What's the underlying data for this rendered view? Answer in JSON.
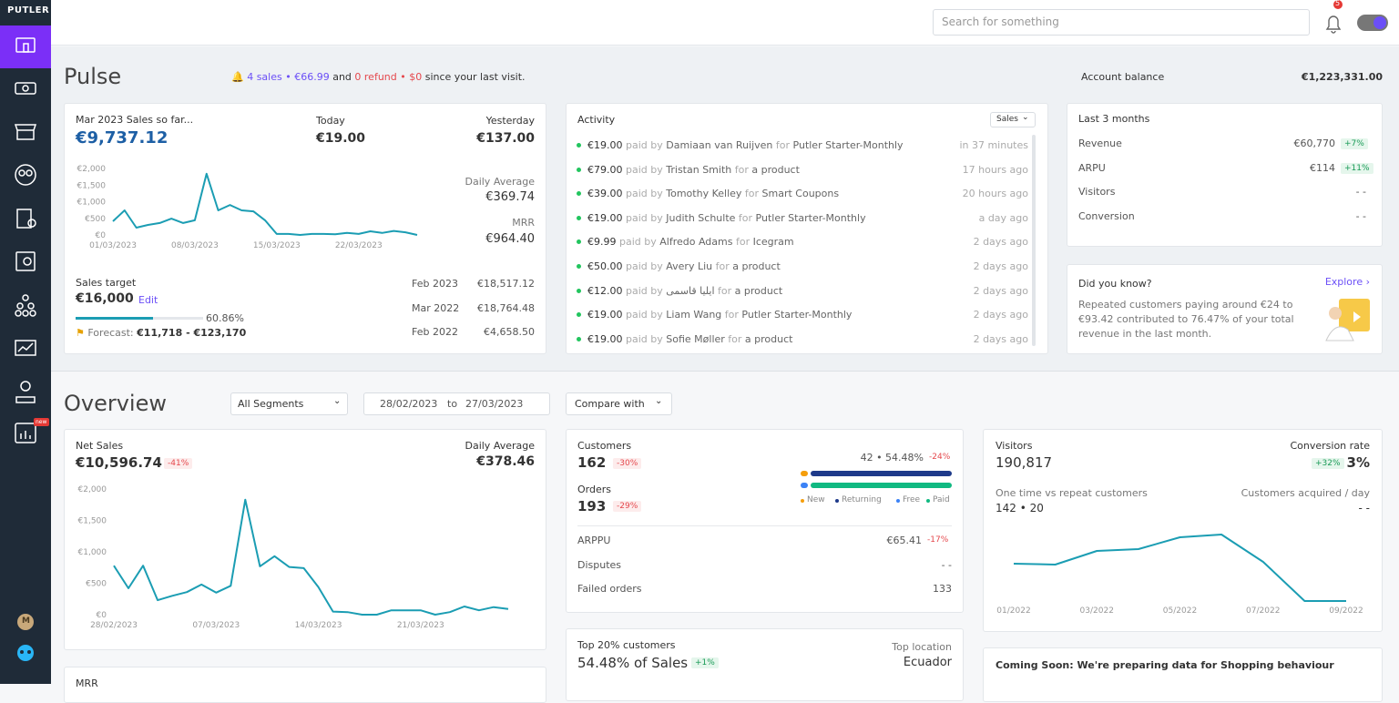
{
  "sidebar": {
    "brand": "PUTLER",
    "avatar": "M",
    "new_badge": "new"
  },
  "header": {
    "search_placeholder": "Search for something",
    "notifications": "5"
  },
  "pulse": {
    "title": "Pulse",
    "last_visit": {
      "sales": "4 sales • €66.99",
      "and": "and",
      "refunds": "0 refund • $0",
      "since": "since your last visit."
    },
    "account_balance": {
      "label": "Account balance",
      "value": "€1,223,331.00"
    },
    "sales_card": {
      "period": "Mar 2023 Sales so far...",
      "total": "€9,737.12",
      "today_label": "Today",
      "today": "€19.00",
      "yesterday_label": "Yesterday",
      "yesterday": "€137.00",
      "daily_average_label": "Daily Average",
      "daily_average": "€369.74",
      "mrr_label": "MRR",
      "mrr": "€964.40",
      "target_label": "Sales target",
      "target": "€16,000",
      "edit": "Edit",
      "progress": {
        "value": 60.86,
        "label": "60.86%"
      },
      "forecast_label": "Forecast:",
      "forecast": "€11,718 - €123,170",
      "comparisons": [
        {
          "period": "Feb 2023",
          "value": "€18,517.12"
        },
        {
          "period": "Mar 2022",
          "value": "€18,764.48"
        },
        {
          "period": "Feb 2022",
          "value": "€4,658.50"
        }
      ]
    },
    "activity": {
      "title": "Activity",
      "filter": "Sales",
      "paid_by": "paid by",
      "for": "for",
      "rows": [
        {
          "amount": "€19.00",
          "name": "Damiaan van Ruijven",
          "product": "Putler Starter-Monthly",
          "time": "in 37 minutes"
        },
        {
          "amount": "€79.00",
          "name": "Tristan Smith",
          "product": "a product",
          "time": "17 hours ago"
        },
        {
          "amount": "€39.00",
          "name": "Tomothy Kelley",
          "product": "Smart Coupons",
          "time": "20 hours ago"
        },
        {
          "amount": "€19.00",
          "name": "Judith Schulte",
          "product": "Putler Starter-Monthly",
          "time": "a day ago"
        },
        {
          "amount": "€9.99",
          "name": "Alfredo Adams",
          "product": "Icegram",
          "time": "2 days ago"
        },
        {
          "amount": "€50.00",
          "name": "Avery Liu",
          "product": "a product",
          "time": "2 days ago"
        },
        {
          "amount": "€12.00",
          "name": "ایلیا قاسمی",
          "product": "a product",
          "time": "2 days ago"
        },
        {
          "amount": "€19.00",
          "name": "Liam Wang",
          "product": "Putler Starter-Monthly",
          "time": "2 days ago"
        },
        {
          "amount": "€19.00",
          "name": "Sofie Møller",
          "product": "a product",
          "time": "2 days ago"
        }
      ]
    },
    "last_3_months": {
      "title": "Last 3 months",
      "rows": [
        {
          "label": "Revenue",
          "value": "€60,770",
          "change": "+7%"
        },
        {
          "label": "ARPU",
          "value": "€114",
          "change": "+11%"
        },
        {
          "label": "Visitors",
          "value": "- -"
        },
        {
          "label": "Conversion",
          "value": "- -"
        }
      ]
    },
    "did_you_know": {
      "title": "Did you know?",
      "link": "Explore ›",
      "text": "Repeated customers paying around €24 to €93.42 contributed to 76.47% of your total revenue in the last month."
    }
  },
  "overview": {
    "title": "Overview",
    "segment": "All Segments",
    "date_from": "28/02/2023",
    "to": "to",
    "date_to": "27/03/2023",
    "compare": "Compare with",
    "net_sales": {
      "label": "Net Sales",
      "value": "€10,596.74",
      "change": "-41%",
      "daily_average_label": "Daily Average",
      "daily_average": "€378.46"
    },
    "customers": {
      "label": "Customers",
      "value": "162",
      "change": "-30%",
      "orders_label": "Orders",
      "orders": "193",
      "orders_change": "-29%",
      "repeat": "42 • 54.48%",
      "repeat_change": "-24%",
      "legend": [
        "New",
        "Returning",
        "Free",
        "Paid"
      ],
      "rows": [
        {
          "label": "ARPPU",
          "value": "€65.41",
          "change": "-17%"
        },
        {
          "label": "Disputes",
          "value": "- -"
        },
        {
          "label": "Failed orders",
          "value": "133"
        }
      ]
    },
    "visitors": {
      "label": "Visitors",
      "value": "190,817",
      "conversion_label": "Conversion rate",
      "conversion_change": "+32%",
      "conversion": "3%",
      "one_time_label": "One time vs repeat customers",
      "one_time": "142 • 20",
      "acquired_label": "Customers acquired / day",
      "acquired": "- -"
    },
    "top_customers": {
      "label": "Top 20% customers",
      "value": "54.48% of Sales",
      "change": "+1%",
      "location_label": "Top location",
      "location": "Ecuador"
    },
    "coming_soon": "Coming Soon: We're preparing data for Shopping behaviour",
    "mrr_label": "MRR"
  },
  "chart_data": [
    {
      "type": "line",
      "color": "#1b9db3",
      "categories": [
        "01/03/2023",
        null,
        null,
        null,
        null,
        null,
        null,
        "08/03/2023",
        null,
        null,
        null,
        null,
        null,
        null,
        "15/03/2023",
        null,
        null,
        null,
        null,
        null,
        null,
        "22/03/2023",
        null,
        null,
        null,
        null,
        null
      ],
      "values": [
        410,
        740,
        220,
        300,
        360,
        490,
        360,
        440,
        1840,
        740,
        900,
        740,
        710,
        440,
        30,
        30,
        0,
        30,
        30,
        20,
        60,
        30,
        110,
        60,
        120,
        80,
        0
      ],
      "ylim": [
        0,
        2000
      ],
      "yticks": [
        {
          "value": 0,
          "label": "€0"
        },
        {
          "value": 500,
          "label": "€500"
        },
        {
          "value": 1000,
          "label": "€1,000"
        },
        {
          "value": 1500,
          "label": "€1,500"
        },
        {
          "value": 2000,
          "label": "€2,000"
        }
      ]
    },
    {
      "type": "line",
      "color": "#1b9db3",
      "categories": [
        "28/02/2023",
        null,
        null,
        null,
        null,
        null,
        null,
        "07/03/2023",
        null,
        null,
        null,
        null,
        null,
        null,
        "14/03/2023",
        null,
        null,
        null,
        null,
        null,
        null,
        "21/03/2023",
        null,
        null,
        null,
        null,
        null,
        null
      ],
      "values": [
        780,
        420,
        780,
        230,
        300,
        360,
        480,
        350,
        460,
        1830,
        770,
        930,
        760,
        740,
        440,
        50,
        40,
        0,
        0,
        70,
        70,
        70,
        0,
        40,
        130,
        70,
        120,
        90
      ],
      "ylim": [
        0,
        2000
      ],
      "yticks": [
        {
          "value": 0,
          "label": "€0"
        },
        {
          "value": 500,
          "label": "€500"
        },
        {
          "value": 1000,
          "label": "€1,000"
        },
        {
          "value": 1500,
          "label": "€1,500"
        },
        {
          "value": 2000,
          "label": "€2,000"
        }
      ]
    },
    {
      "type": "line",
      "color": "#1b9db3",
      "categories": [
        "01/2022",
        null,
        "03/2022",
        null,
        "05/2022",
        null,
        "07/2022",
        null,
        "09/2022"
      ],
      "values": [
        61,
        60,
        75,
        77,
        90,
        93,
        63,
        20,
        20
      ],
      "ylim": [
        0,
        100
      ]
    }
  ]
}
